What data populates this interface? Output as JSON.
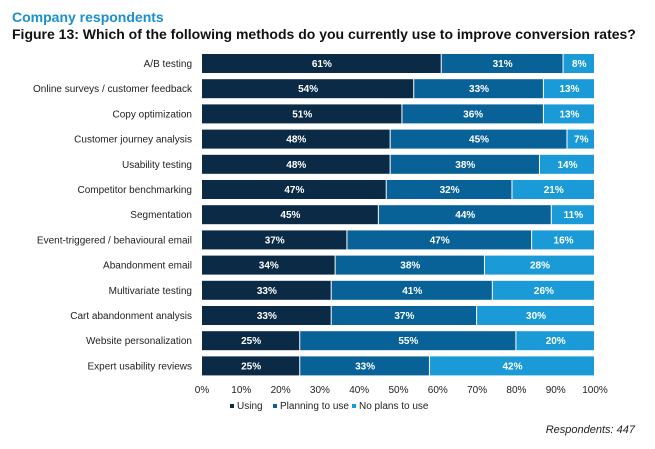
{
  "header": {
    "subtitle": "Company respondents",
    "title": "Figure 13: Which of the following methods do you currently use to improve conversion rates?"
  },
  "footer": {
    "respondents": "Respondents: 447"
  },
  "chart_data": {
    "type": "bar",
    "orientation": "horizontal",
    "stacked": true,
    "categories": [
      "A/B testing",
      "Online surveys / customer feedback",
      "Copy optimization",
      "Customer journey analysis",
      "Usability testing",
      "Competitor benchmarking",
      "Segmentation",
      "Event-triggered / behavioural email",
      "Abandonment email",
      "Multivariate testing",
      "Cart abandonment analysis",
      "Website personalization",
      "Expert usability reviews"
    ],
    "series": [
      {
        "name": "Using",
        "color": "#0a2a45",
        "values": [
          61,
          54,
          51,
          48,
          48,
          47,
          45,
          37,
          34,
          33,
          33,
          25,
          25
        ]
      },
      {
        "name": "Planning to use",
        "color": "#086197",
        "values": [
          31,
          33,
          36,
          45,
          38,
          32,
          44,
          47,
          38,
          41,
          37,
          55,
          33
        ]
      },
      {
        "name": "No plans to use",
        "color": "#1a9bd7",
        "values": [
          8,
          13,
          13,
          7,
          14,
          21,
          11,
          16,
          28,
          26,
          30,
          20,
          42
        ]
      }
    ],
    "xlim": [
      0,
      100
    ],
    "xticks": [
      "0%",
      "10%",
      "20%",
      "30%",
      "40%",
      "50%",
      "60%",
      "70%",
      "80%",
      "90%",
      "100%"
    ],
    "value_suffix": "%",
    "legend_position": "bottom",
    "grid": false
  }
}
